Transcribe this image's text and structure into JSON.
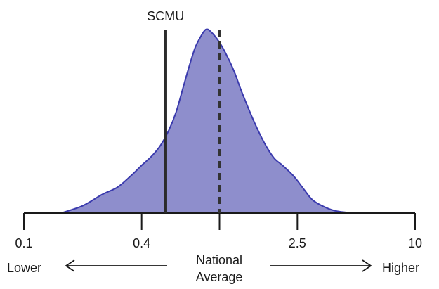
{
  "chart_data": {
    "type": "area",
    "x_scale": "log",
    "xlim": [
      0.1,
      10
    ],
    "x_ticks": [
      0.1,
      0.4,
      1,
      2.5,
      10
    ],
    "x_tick_labels": [
      "0.1",
      "0.4",
      "",
      "2.5",
      "10"
    ],
    "grid": false,
    "density": {
      "x": [
        0.155,
        0.2,
        0.25,
        0.3,
        0.35,
        0.4,
        0.45,
        0.5,
        0.55,
        0.6,
        0.65,
        0.7,
        0.75,
        0.8,
        0.85,
        0.9,
        1.0,
        1.1,
        1.2,
        1.3,
        1.5,
        1.7,
        1.9,
        2.1,
        2.4,
        2.7,
        3.0,
        3.5,
        4.0,
        5.0,
        6.0
      ],
      "y": [
        0.0,
        0.04,
        0.1,
        0.14,
        0.2,
        0.26,
        0.31,
        0.37,
        0.45,
        0.55,
        0.68,
        0.8,
        0.9,
        0.96,
        1.0,
        0.99,
        0.93,
        0.85,
        0.76,
        0.66,
        0.5,
        0.38,
        0.3,
        0.26,
        0.2,
        0.13,
        0.07,
        0.03,
        0.01,
        0.0,
        0.0
      ],
      "fill": "#8e8ecc",
      "stroke": "#3a3aad"
    },
    "reference_lines": [
      {
        "name": "SCMU",
        "x": 0.53,
        "style": "solid",
        "label": "SCMU",
        "color": "#2b2b2b"
      },
      {
        "name": "National Average",
        "x": 1.0,
        "style": "dashed",
        "color": "#333333"
      }
    ],
    "direction_labels": {
      "left": "Lower",
      "center_line1": "National",
      "center_line2": "Average",
      "right": "Higher"
    }
  }
}
